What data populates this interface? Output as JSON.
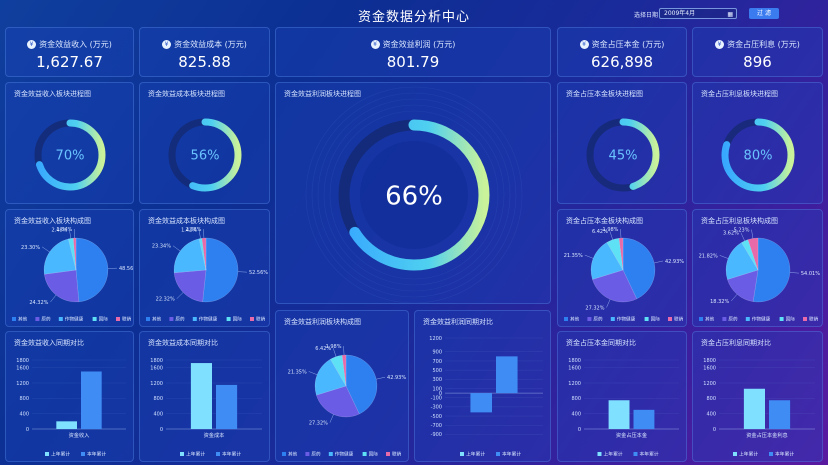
{
  "header": {
    "title": "资金数据分析中心",
    "date_label": "选择日期",
    "date_value": "2009年4月",
    "filter_button": "过 滤"
  },
  "kpis": [
    {
      "label": "资金效益收入 (万元)",
      "value": "1,627.67",
      "icon": "yuan-coin-icon"
    },
    {
      "label": "资金效益成本 (万元)",
      "value": "825.88",
      "icon": "yuan-coin-icon"
    },
    {
      "label": "资金效益利润 (万元)",
      "value": "801.79",
      "icon": "money-bag-icon"
    },
    {
      "label": "资金占压本金 (万元)",
      "value": "626,898",
      "icon": "yuan-coin-icon"
    },
    {
      "label": "资金占压利息 (万元)",
      "value": "896",
      "icon": "yuan-coin-icon"
    }
  ],
  "progress": [
    {
      "title": "资金效益收入板块进程图",
      "percent": 70,
      "label": "70%"
    },
    {
      "title": "资金效益成本板块进程图",
      "percent": 56,
      "label": "56%"
    },
    {
      "title": "资金效益利润板块进程图",
      "percent": 66,
      "label": "66%"
    },
    {
      "title": "资金占压本金板块进程图",
      "percent": 45,
      "label": "45%"
    },
    {
      "title": "资金占压利息板块进程图",
      "percent": 80,
      "label": "80%"
    }
  ],
  "pie_legend": [
    "其他",
    "原药",
    "作物健康",
    "国际",
    "联销"
  ],
  "colors": {
    "pie": [
      "#2e7ff0",
      "#6b5ce6",
      "#4ab8ff",
      "#5ee0f5",
      "#e86aa8"
    ],
    "bar_prev": "#7fe0ff",
    "bar_cur": "#3f8cf5"
  },
  "chart_data": [
    {
      "type": "pie",
      "title": "资金效益收入板块构成图",
      "categories": [
        "其他",
        "原药",
        "作物健康",
        "国际",
        "联销"
      ],
      "values": [
        48.56,
        24.32,
        23.3,
        2.48,
        1.34
      ],
      "labels": [
        "48.56%",
        "24.32%",
        "23.30%",
        "2.48%",
        "1.34%"
      ]
    },
    {
      "type": "pie",
      "title": "资金效益成本板块构成图",
      "categories": [
        "其他",
        "原药",
        "作物健康",
        "国际",
        "联销"
      ],
      "values": [
        52.56,
        22.32,
        23.34,
        1.42,
        2.08
      ],
      "labels": [
        "52.56%",
        "22.32%",
        "23.34%",
        "1.42%",
        "2.08%"
      ]
    },
    {
      "type": "pie",
      "title": "资金效益利润板块构成图",
      "categories": [
        "其他",
        "原药",
        "作物健康",
        "国际",
        "联销"
      ],
      "values": [
        42.93,
        27.32,
        21.35,
        6.42,
        1.98
      ],
      "labels": [
        "42.93%",
        "27.32%",
        "21.35%",
        "6.42%",
        "1.98%"
      ]
    },
    {
      "type": "pie",
      "title": "资金占压本金板块构成图",
      "categories": [
        "其他",
        "原药",
        "作物健康",
        "国际",
        "联销"
      ],
      "values": [
        42.93,
        27.32,
        21.35,
        6.42,
        1.98
      ],
      "labels": [
        "42.93%",
        "27.32%",
        "21.35%",
        "6.42%",
        "1.98%"
      ]
    },
    {
      "type": "pie",
      "title": "资金占压利息板块构成图",
      "categories": [
        "其他",
        "原药",
        "作物健康",
        "国际",
        "联销"
      ],
      "values": [
        54.01,
        18.32,
        21.82,
        3.62,
        5.23
      ],
      "labels": [
        "54.01%",
        "18.32%",
        "21.82%",
        "3.62%",
        "5.23%"
      ]
    },
    {
      "type": "bar",
      "title": "资金效益收入同期对比",
      "categories": [
        "资金收入"
      ],
      "series": [
        {
          "name": "上年累计",
          "values": [
            200
          ]
        },
        {
          "name": "本年累计",
          "values": [
            1500
          ]
        }
      ],
      "ylim": [
        0,
        1800
      ],
      "yticks": [
        0,
        400,
        800,
        1200,
        1600,
        1800
      ]
    },
    {
      "type": "bar",
      "title": "资金效益成本同期对比",
      "categories": [
        "资金成本"
      ],
      "series": [
        {
          "name": "上年累计",
          "values": [
            1720
          ]
        },
        {
          "name": "本年累计",
          "values": [
            1150
          ]
        }
      ],
      "ylim": [
        0,
        1800
      ],
      "yticks": [
        0,
        400,
        800,
        1200,
        1600,
        1800
      ]
    },
    {
      "type": "bar",
      "title": "资金效益利润同期对比",
      "categories": [
        ""
      ],
      "series": [
        {
          "name": "上年累计",
          "values": [
            -420
          ]
        },
        {
          "name": "本年累计",
          "values": [
            800
          ]
        }
      ],
      "ylim": [
        -1000,
        1200
      ],
      "yticks": [
        -900,
        -700,
        -500,
        -300,
        -100,
        0,
        100,
        300,
        500,
        700,
        900,
        1200
      ]
    },
    {
      "type": "bar",
      "title": "资金占压本金同期对比",
      "categories": [
        "资金占压本金"
      ],
      "series": [
        {
          "name": "上年累计",
          "values": [
            750
          ]
        },
        {
          "name": "本年累计",
          "values": [
            500
          ]
        }
      ],
      "ylim": [
        0,
        1800
      ],
      "yticks": [
        0,
        400,
        800,
        1200,
        1600,
        1800
      ]
    },
    {
      "type": "bar",
      "title": "资金占压利息同期对比",
      "categories": [
        "资金占压本金利息"
      ],
      "series": [
        {
          "name": "上年累计",
          "values": [
            1050
          ]
        },
        {
          "name": "本年累计",
          "values": [
            750
          ]
        }
      ],
      "ylim": [
        0,
        1800
      ],
      "yticks": [
        0,
        400,
        800,
        1200,
        1600,
        1800
      ]
    }
  ]
}
